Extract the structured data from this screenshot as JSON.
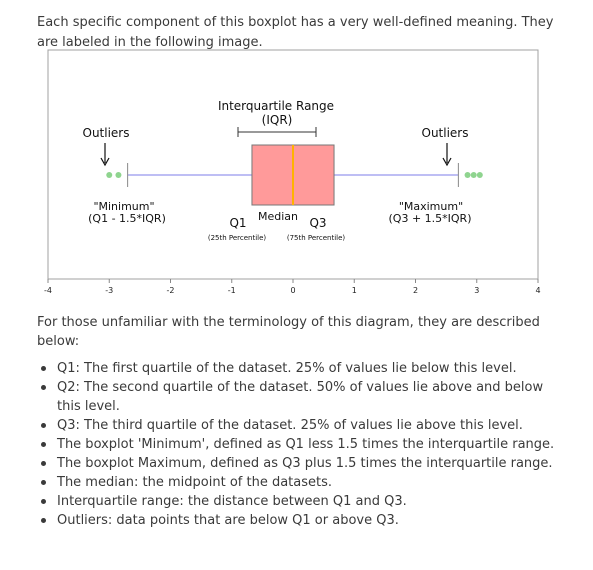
{
  "intro_text": "Each specific component of this boxplot has a very well-defined meaning. They are labeled in the following image.",
  "diagram": {
    "iqr_label": "Interquartile Range",
    "iqr_abbrev": "(IQR)",
    "outliers_left_label": "Outliers",
    "outliers_right_label": "Outliers",
    "minimum_label": "\"Minimum\"",
    "minimum_formula": "(Q1 - 1.5*IQR)",
    "maximum_label": "\"Maximum\"",
    "maximum_formula": "(Q3 + 1.5*IQR)",
    "q1_label": "Q1",
    "median_label": "Median",
    "q3_label": "Q3",
    "q1_percentile": "(25th Percentile)",
    "q3_percentile": "(75th Percentile)",
    "colors": {
      "box": "#ff9a9a",
      "median": "#ffb300",
      "whisker": "#a9a9f0",
      "outlier": "#8fd48f",
      "frame": "#a0a0a0"
    }
  },
  "chart_data": {
    "type": "boxplot",
    "xlim": [
      -4,
      4
    ],
    "x_ticks": [
      "-4",
      "-3",
      "-2",
      "-1",
      "0",
      "1",
      "2",
      "3",
      "4"
    ],
    "x_tick_values": [
      -4,
      -3,
      -2,
      -1,
      0,
      1,
      2,
      3,
      4
    ],
    "whisker_low": -2.7,
    "q1": -0.67,
    "median": 0,
    "q3": 0.67,
    "whisker_high": 2.7,
    "outliers": [
      -3.0,
      -2.85,
      2.85,
      2.95,
      3.05
    ]
  },
  "outro_text": "For those unfamiliar with the terminology of this diagram, they are described below:",
  "definitions": [
    "Q1: The first quartile of the dataset. 25% of values lie below this level.",
    "Q2: The second quartile of the dataset. 50% of values lie above and below this level.",
    "Q3: The third quartile of the dataset. 25% of values lie above this level.",
    "The boxplot 'Minimum', defined as Q1 less 1.5 times the interquartile range.",
    "The boxplot Maximum, defined as Q3 plus 1.5 times the interquartile range.",
    "The median: the midpoint of the datasets.",
    "Interquartile range: the distance between Q1 and Q3.",
    "Outliers: data points that are below Q1 or above Q3."
  ]
}
